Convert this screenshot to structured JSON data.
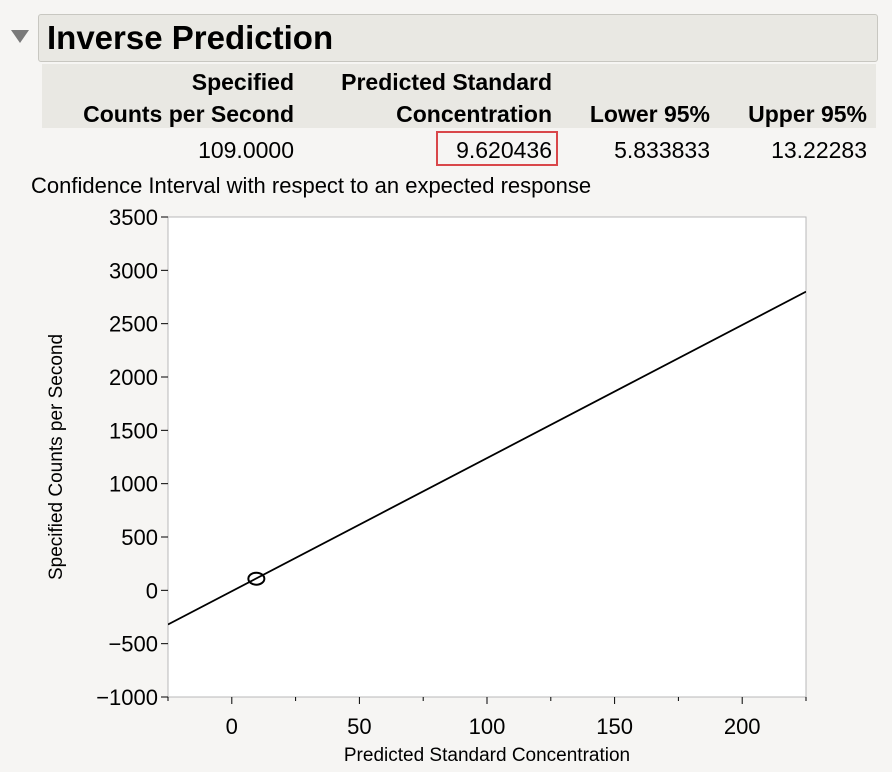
{
  "report": {
    "title": "Inverse Prediction"
  },
  "table": {
    "col1": [
      "Specified",
      "Counts per Second"
    ],
    "col2": [
      "Predicted Standard",
      "Concentration"
    ],
    "col3": "Lower 95%",
    "col4": "Upper 95%",
    "row": {
      "counts": "109.0000",
      "concentration": "9.620436",
      "lower": "5.833833",
      "upper": "13.22283"
    }
  },
  "plot_caption": "Confidence Interval with respect to an expected response",
  "chart_data": {
    "type": "line",
    "title": "",
    "xlabel": "Predicted Standard Concentration",
    "ylabel": "Specified Counts per Second",
    "xlim": [
      -25,
      225
    ],
    "ylim": [
      -1000,
      3500
    ],
    "x_ticks": [
      0,
      50,
      100,
      150,
      200
    ],
    "y_ticks": [
      -1000,
      -500,
      0,
      500,
      1000,
      1500,
      2000,
      2500,
      3000,
      3500
    ],
    "grid": false,
    "line": {
      "x": [
        -25,
        225
      ],
      "y": [
        -320,
        2800
      ]
    },
    "point": {
      "x": 9.620436,
      "y": 109.0
    }
  }
}
